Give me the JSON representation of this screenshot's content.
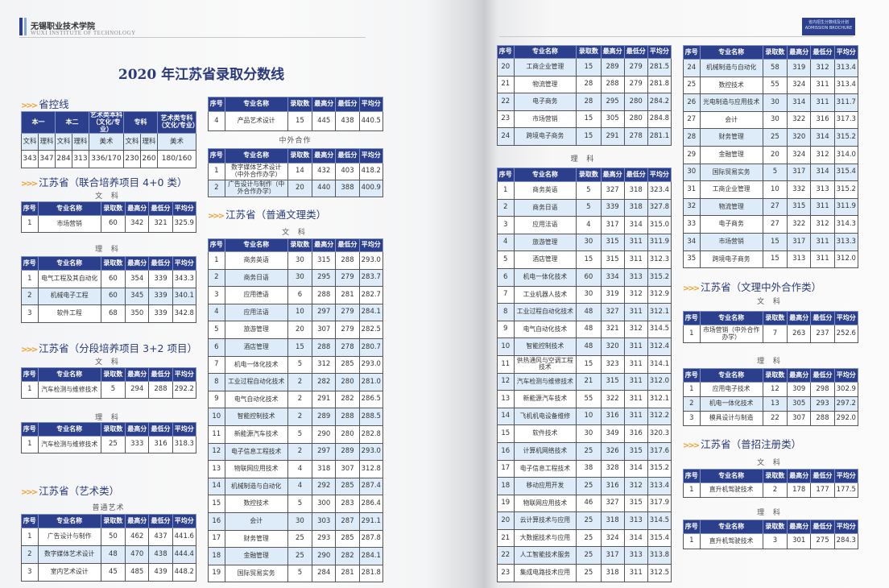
{
  "header": {
    "school_cn": "无锡职业技术学院",
    "school_en": "WUXI INSTITUTE OF TECHNOLOGY",
    "badge_cn": "省内招生分数线及计划",
    "badge_en": "ADMISSION BROCHURE"
  },
  "title": "2020 年江苏省录取分数线",
  "columns": [
    "序号",
    "专业名称",
    "录取数",
    "最高分",
    "最低分",
    "平均分"
  ],
  "sections": {
    "control": "省控线",
    "joint": "江苏省（联合培养项目 4+0 类）",
    "segment": "江苏省（分段培养项目 3+2 项目）",
    "art": "江苏省（艺术类）",
    "general": "江苏省（普通文理类）",
    "sino": "江苏省（文理中外合作类）",
    "register": "江苏省（普招注册类）"
  },
  "labels": {
    "wen": "文 科",
    "li": "理 科",
    "art_general": "普通艺术",
    "cooperation": "中外合作"
  },
  "province_line": {
    "headers": [
      "本一",
      "本二",
      "艺术类本科（文化/专业）",
      "专科",
      "艺术类专科（文化/专业）"
    ],
    "subheaders": [
      "文科",
      "理科",
      "文科",
      "理科",
      "美术",
      "文科",
      "理科",
      "美术"
    ],
    "values": [
      "343",
      "347",
      "284",
      "313",
      "336/170",
      "230",
      "260",
      "180/160"
    ]
  },
  "tables": {
    "joint_wen": [
      [
        "1",
        "市场营销",
        "60",
        "342",
        "321",
        "325.9"
      ]
    ],
    "joint_li": [
      [
        "1",
        "电气工程及其自动化",
        "60",
        "354",
        "339",
        "343.3"
      ],
      [
        "2",
        "机械电子工程",
        "60",
        "345",
        "339",
        "340.1"
      ],
      [
        "3",
        "软件工程",
        "68",
        "350",
        "339",
        "342.8"
      ]
    ],
    "seg_wen": [
      [
        "1",
        "汽车检测与维修技术",
        "5",
        "294",
        "288",
        "292.2"
      ]
    ],
    "seg_li": [
      [
        "1",
        "汽车检测与维修技术",
        "25",
        "333",
        "316",
        "318.3"
      ]
    ],
    "art_general": [
      [
        "1",
        "广告设计与制作",
        "50",
        "462",
        "437",
        "441.6"
      ],
      [
        "2",
        "数字媒体艺术设计",
        "48",
        "470",
        "438",
        "444.4"
      ],
      [
        "3",
        "室内艺术设计",
        "45",
        "485",
        "439",
        "448.2"
      ]
    ],
    "art_general_cont": [
      [
        "4",
        "产品艺术设计",
        "15",
        "445",
        "438",
        "440.5"
      ]
    ],
    "art_coop": [
      [
        "1",
        "数字媒体艺术设计（中外合作办学）",
        "14",
        "432",
        "403",
        "418.2"
      ],
      [
        "2",
        "广告设计与制作（中外合作办学）",
        "20",
        "440",
        "388",
        "400.9"
      ]
    ],
    "gen_wen": [
      [
        "1",
        "商务英语",
        "30",
        "315",
        "288",
        "293.0"
      ],
      [
        "2",
        "商务日语",
        "30",
        "295",
        "279",
        "283.7"
      ],
      [
        "3",
        "应用德语",
        "6",
        "288",
        "281",
        "282.7"
      ],
      [
        "4",
        "应用法语",
        "10",
        "297",
        "279",
        "284.1"
      ],
      [
        "5",
        "旅游管理",
        "20",
        "307",
        "279",
        "282.5"
      ],
      [
        "6",
        "酒店管理",
        "15",
        "288",
        "278",
        "280.7"
      ],
      [
        "7",
        "机电一体化技术",
        "5",
        "312",
        "285",
        "293.0"
      ],
      [
        "8",
        "工业过程自动化技术",
        "2",
        "282",
        "280",
        "281.0"
      ],
      [
        "9",
        "电气自动化技术",
        "2",
        "291",
        "282",
        "286.5"
      ],
      [
        "10",
        "智能控制技术",
        "2",
        "289",
        "288",
        "288.5"
      ],
      [
        "11",
        "新能源汽车技术",
        "5",
        "290",
        "280",
        "282.8"
      ],
      [
        "12",
        "电子信息工程技术",
        "2",
        "297",
        "289",
        "293.0"
      ],
      [
        "13",
        "物联网应用技术",
        "4",
        "318",
        "307",
        "312.8"
      ],
      [
        "14",
        "机械制造与自动化",
        "4",
        "292",
        "285",
        "287.4"
      ],
      [
        "15",
        "数控技术",
        "5",
        "300",
        "283",
        "286.4"
      ],
      [
        "16",
        "会计",
        "30",
        "303",
        "287",
        "291.1"
      ],
      [
        "17",
        "财务管理",
        "25",
        "293",
        "285",
        "287.8"
      ],
      [
        "18",
        "金融管理",
        "25",
        "290",
        "282",
        "284.1"
      ],
      [
        "19",
        "国际贸易实务",
        "5",
        "284",
        "281",
        "281.8"
      ]
    ],
    "gen_wen_cont": [
      [
        "20",
        "工商企业管理",
        "15",
        "289",
        "279",
        "281.5"
      ],
      [
        "21",
        "物流管理",
        "28",
        "288",
        "279",
        "281.8"
      ],
      [
        "22",
        "电子商务",
        "28",
        "295",
        "280",
        "284.2"
      ],
      [
        "23",
        "市场营销",
        "15",
        "305",
        "280",
        "284.8"
      ],
      [
        "24",
        "跨境电子商务",
        "15",
        "291",
        "278",
        "281.1"
      ]
    ],
    "gen_li": [
      [
        "1",
        "商务英语",
        "5",
        "327",
        "318",
        "323.4"
      ],
      [
        "2",
        "商务日语",
        "5",
        "339",
        "318",
        "327.8"
      ],
      [
        "3",
        "应用法语",
        "4",
        "317",
        "314",
        "315.0"
      ],
      [
        "4",
        "旅游管理",
        "30",
        "315",
        "311",
        "311.9"
      ],
      [
        "5",
        "酒店管理",
        "15",
        "315",
        "311",
        "312.3"
      ],
      [
        "6",
        "机电一体化技术",
        "60",
        "334",
        "313",
        "315.2"
      ],
      [
        "7",
        "工业机器人技术",
        "30",
        "319",
        "312",
        "312.9"
      ],
      [
        "8",
        "工业过程自动化技术",
        "48",
        "327",
        "311",
        "312.1"
      ],
      [
        "9",
        "电气自动化技术",
        "48",
        "321",
        "312",
        "314.5"
      ],
      [
        "10",
        "智能控制技术",
        "48",
        "320",
        "311",
        "312.4"
      ],
      [
        "11",
        "供热通风与空调工程技术",
        "15",
        "323",
        "311",
        "314.1"
      ],
      [
        "12",
        "汽车检测与维修技术",
        "21",
        "315",
        "311",
        "312.0"
      ],
      [
        "13",
        "新能源汽车技术",
        "55",
        "322",
        "311",
        "312.1"
      ],
      [
        "14",
        "飞机机电设备维修",
        "10",
        "316",
        "311",
        "312.2"
      ],
      [
        "15",
        "软件技术",
        "30",
        "349",
        "316",
        "320.3"
      ],
      [
        "16",
        "计算机网络技术",
        "25",
        "326",
        "315",
        "317.6"
      ],
      [
        "17",
        "电子信息工程技术",
        "38",
        "328",
        "314",
        "315.2"
      ],
      [
        "18",
        "移动应用开发",
        "25",
        "316",
        "312",
        "313.4"
      ],
      [
        "19",
        "物联网应用技术",
        "46",
        "327",
        "315",
        "317.9"
      ],
      [
        "20",
        "云计算技术与应用",
        "25",
        "318",
        "313",
        "314.5"
      ],
      [
        "21",
        "大数据技术与应用",
        "25",
        "324",
        "314",
        "315.4"
      ],
      [
        "22",
        "人工智能技术服务",
        "25",
        "317",
        "313",
        "313.8"
      ],
      [
        "23",
        "集成电路技术应用",
        "25",
        "318",
        "311",
        "312.5"
      ]
    ],
    "gen_li_cont": [
      [
        "24",
        "机械制造与自动化",
        "58",
        "319",
        "312",
        "313.4"
      ],
      [
        "25",
        "数控技术",
        "55",
        "324",
        "311",
        "313.4"
      ],
      [
        "26",
        "光电制造与应用技术",
        "30",
        "314",
        "311",
        "311.7"
      ],
      [
        "27",
        "会计",
        "30",
        "322",
        "316",
        "317.3"
      ],
      [
        "28",
        "财务管理",
        "25",
        "320",
        "314",
        "315.2"
      ],
      [
        "29",
        "金融管理",
        "20",
        "324",
        "312",
        "314.0"
      ],
      [
        "30",
        "国际贸易实务",
        "5",
        "317",
        "314",
        "315.4"
      ],
      [
        "31",
        "工商企业管理",
        "10",
        "332",
        "313",
        "315.2"
      ],
      [
        "32",
        "物流管理",
        "27",
        "315",
        "311",
        "311.9"
      ],
      [
        "33",
        "电子商务",
        "27",
        "322",
        "312",
        "314.3"
      ],
      [
        "34",
        "市场营销",
        "15",
        "317",
        "311",
        "313.3"
      ],
      [
        "35",
        "跨境电子商务",
        "15",
        "313",
        "311",
        "312.0"
      ]
    ],
    "sino_wen": [
      [
        "1",
        "市场营销（中外合作办学）",
        "7",
        "263",
        "237",
        "252.6"
      ]
    ],
    "sino_li": [
      [
        "1",
        "应用电子技术",
        "12",
        "309",
        "298",
        "302.9"
      ],
      [
        "2",
        "机电一体化技术",
        "13",
        "305",
        "293",
        "297.2"
      ],
      [
        "3",
        "模具设计与制造",
        "22",
        "307",
        "288",
        "292.0"
      ]
    ],
    "reg_wen": [
      [
        "1",
        "直升机驾驶技术",
        "2",
        "178",
        "177",
        "177.5"
      ]
    ],
    "reg_li": [
      [
        "1",
        "直升机驾驶技术",
        "3",
        "301",
        "275",
        "284.3"
      ]
    ]
  },
  "colors": {
    "header_bg": "#2b3f8c",
    "row_alt": "#ddecf8",
    "title": "#2a3a7c",
    "accent": "#f0a030"
  }
}
